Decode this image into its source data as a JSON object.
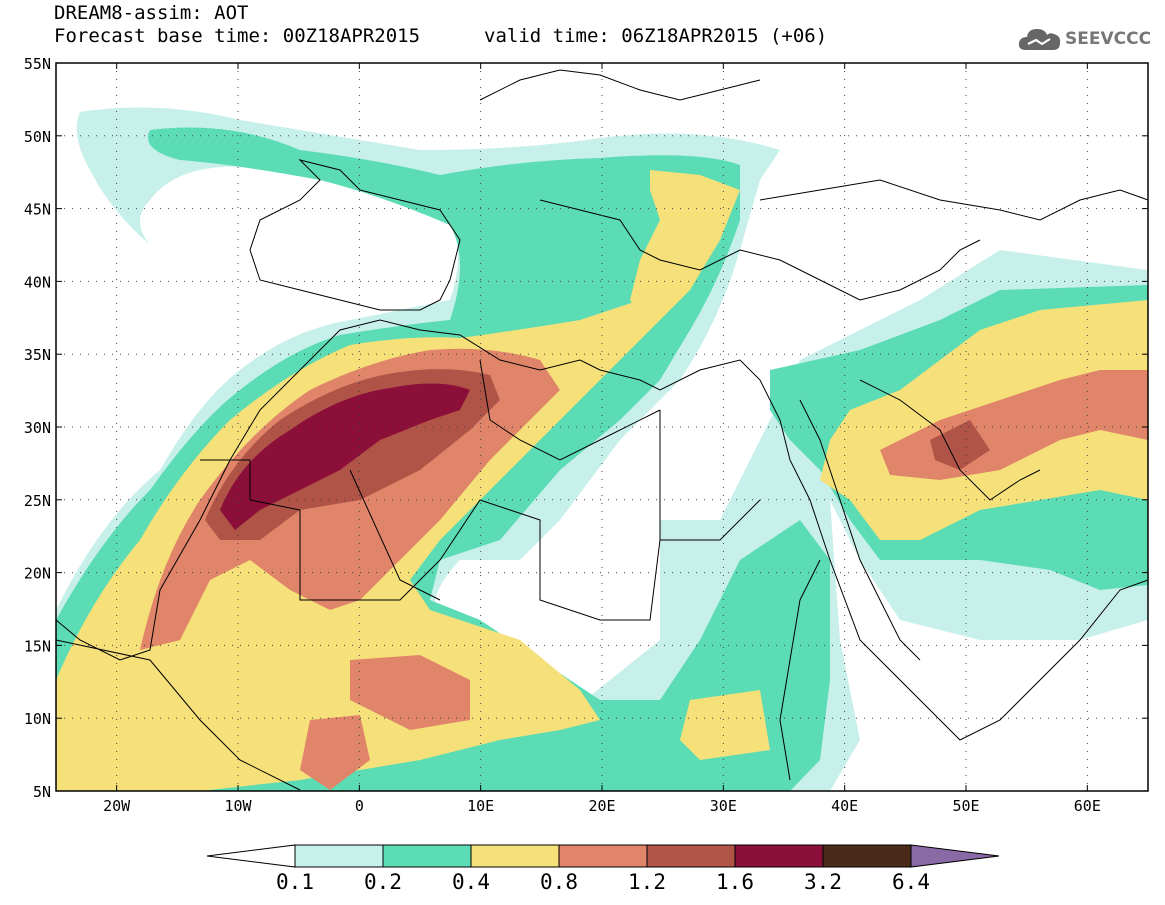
{
  "header": {
    "title_line1": "DREAM8-assim: AOT",
    "title_line2_left": "Forecast base time: 00Z18APR2015",
    "title_line2_right": "valid time: 06Z18APR2015 (+06)",
    "logo_text": "SEEVCCC"
  },
  "map": {
    "lat_labels": [
      "55N",
      "50N",
      "45N",
      "40N",
      "35N",
      "30N",
      "25N",
      "20N",
      "15N",
      "10N",
      "5N"
    ],
    "lon_labels": [
      "20W",
      "10W",
      "0",
      "10E",
      "20E",
      "30E",
      "40E",
      "50E",
      "60E"
    ],
    "extent": {
      "lon_min": -25,
      "lon_max": 65,
      "lat_min": 5,
      "lat_max": 55
    },
    "grid": "dotted",
    "field": "Aerosol optical thickness (dust)"
  },
  "colorbar": {
    "labels": [
      "0.1",
      "0.2",
      "0.4",
      "0.8",
      "1.2",
      "1.6",
      "3.2",
      "6.4"
    ],
    "colors": [
      "#ffffff",
      "#c8f0ea",
      "#5cdcb4",
      "#f5e07a",
      "#e0856a",
      "#b05448",
      "#8c0f3a",
      "#4a2a18",
      "#8a6aa6"
    ]
  }
}
